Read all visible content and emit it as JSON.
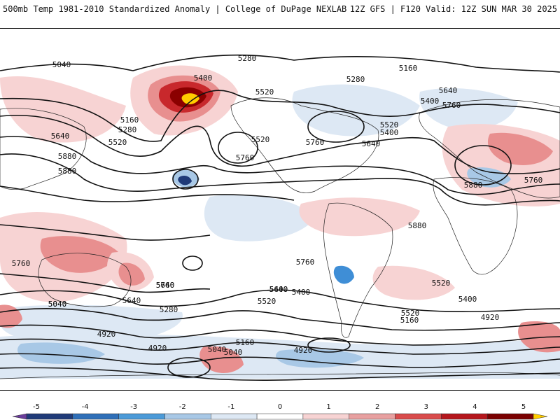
{
  "header": {
    "left": "500mb Temp 1981-2010 Standardized Anomaly | College of DuPage NEXLAB",
    "right": "12Z GFS | F120 Valid: 12Z SUN MAR 30 2025"
  },
  "map": {
    "contour_labels": [
      "5040",
      "5280",
      "5400",
      "5160",
      "5280",
      "5640",
      "5520",
      "5400",
      "5160",
      "5280",
      "5520",
      "5400",
      "5640",
      "5760",
      "5640",
      "5520",
      "5520",
      "5760",
      "5880",
      "5760",
      "5760",
      "5880",
      "5880",
      "5880",
      "5760",
      "5760",
      "5760",
      "5640",
      "5520",
      "5640",
      "5520",
      "5400",
      "5400",
      "5640",
      "5520",
      "5400",
      "5280",
      "5160",
      "5040",
      "5040",
      "5040",
      "4920",
      "4920",
      "4920",
      "5160",
      "5040",
      "4920"
    ],
    "anomaly_colors": {
      "warm_light": "#f7d3d3",
      "warm_mid": "#e88f8f",
      "warm_strong": "#c8282c",
      "warm_extreme": "#8b0000",
      "warm_peak": "#ffcc00",
      "cool_light": "#dde8f4",
      "cool_mid": "#a8c8e6",
      "cool_strong": "#3f8ed6",
      "cool_extreme": "#1f3a78"
    }
  },
  "colorbar": {
    "ticks": [
      "-5",
      "-4",
      "-3",
      "-2",
      "-1",
      "0",
      "1",
      "2",
      "3",
      "4",
      "5"
    ],
    "colors": [
      "#6a3d9a",
      "#1f3a78",
      "#2f6fb8",
      "#4b9ad8",
      "#a8c8e6",
      "#dde8f4",
      "#ffffff",
      "#f7d3d3",
      "#e8a0a0",
      "#d94b4b",
      "#b5161c",
      "#7a0000",
      "#ffcc00"
    ]
  }
}
